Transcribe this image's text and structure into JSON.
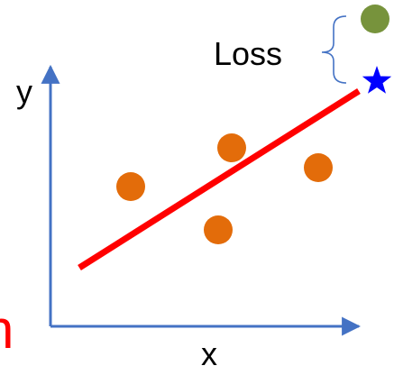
{
  "diagram": {
    "axis_x_label": "x",
    "axis_y_label": "y",
    "loss_label": "Loss",
    "cropped_left_glyph": "n",
    "colors": {
      "axis": "#4472c4",
      "points": "#e36c0a",
      "regression_line": "#ff0000",
      "target_point": "#77933c",
      "predicted_star": "#0000ff",
      "brace": "#4472c4",
      "cropped_text": "#ff0000"
    },
    "icons": {
      "predicted": "star-icon",
      "target": "circle-icon"
    }
  }
}
